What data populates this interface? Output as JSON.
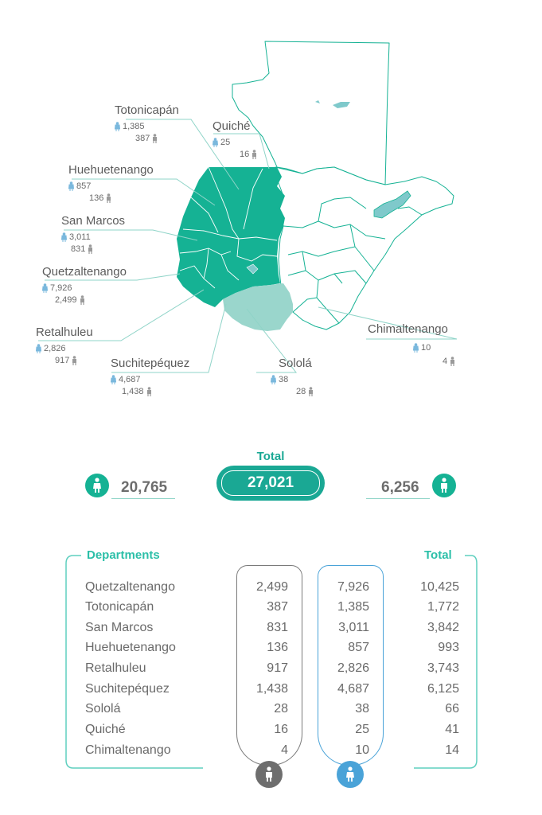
{
  "map": {
    "departments": [
      {
        "name": "Totonicapán",
        "female": "1,385",
        "male": "387"
      },
      {
        "name": "Quiché",
        "female": "25",
        "male": "16"
      },
      {
        "name": "Huehuetenango",
        "female": "857",
        "male": "136"
      },
      {
        "name": "San Marcos",
        "female": "3,011",
        "male": "831"
      },
      {
        "name": "Quetzaltenango",
        "female": "7,926",
        "male": "2,499"
      },
      {
        "name": "Retalhuleu",
        "female": "2,826",
        "male": "917"
      },
      {
        "name": "Suchitepéquez",
        "female": "4,687",
        "male": "1,438"
      },
      {
        "name": "Sololá",
        "female": "38",
        "male": "28"
      },
      {
        "name": "Chimaltenango",
        "female": "10",
        "male": "4"
      }
    ],
    "colors": {
      "highlight": "#15b294",
      "secondary": "#9ad6cc",
      "outline": "#15b294",
      "lake": "#7fc9cb"
    }
  },
  "summary": {
    "total_label": "Total",
    "total_value": "27,021",
    "female_total": "20,765",
    "male_total": "6,256",
    "accent": "#1aa894"
  },
  "table": {
    "title": "Departments",
    "total_header": "Total",
    "rows": [
      {
        "name": "Quetzaltenango",
        "male": "2,499",
        "female": "7,926",
        "total": "10,425"
      },
      {
        "name": "Totonicapán",
        "male": "387",
        "female": "1,385",
        "total": "1,772"
      },
      {
        "name": "San Marcos",
        "male": "831",
        "female": "3,011",
        "total": "3,842"
      },
      {
        "name": "Huehuetenango",
        "male": "136",
        "female": "857",
        "total": "993"
      },
      {
        "name": "Retalhuleu",
        "male": "917",
        "female": "2,826",
        "total": "3,743"
      },
      {
        "name": "Suchitepéquez",
        "male": "1,438",
        "female": "4,687",
        "total": "6,125"
      },
      {
        "name": "Sololá",
        "male": "28",
        "female": "38",
        "total": "66"
      },
      {
        "name": "Quiché",
        "male": "16",
        "female": "25",
        "total": "41"
      },
      {
        "name": "Chimaltenango",
        "male": "4",
        "female": "10",
        "total": "14"
      }
    ],
    "colors": {
      "male_column": "#7a7a7a",
      "female_column": "#4aa3d8",
      "frame": "#5fcfbf"
    }
  }
}
